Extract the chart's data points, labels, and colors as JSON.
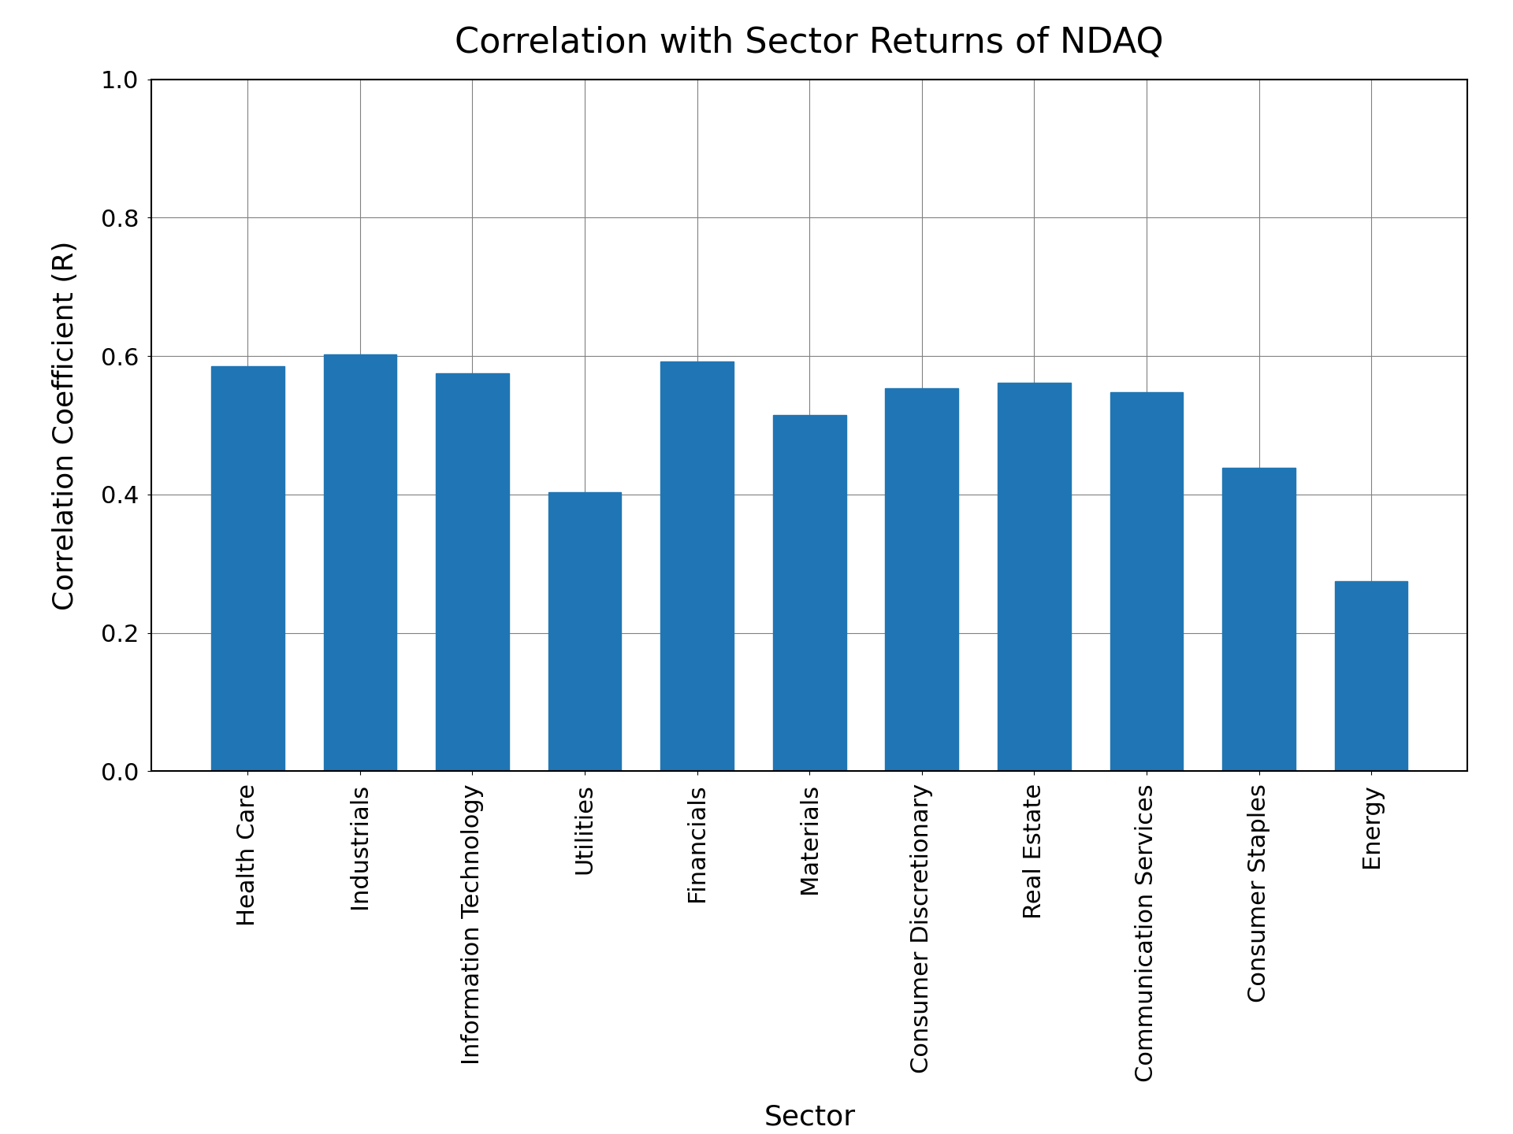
{
  "title": "Correlation with Sector Returns of NDAQ",
  "xlabel": "Sector",
  "ylabel": "Correlation Coefficient (R)",
  "categories": [
    "Health Care",
    "Industrials",
    "Information Technology",
    "Utilities",
    "Financials",
    "Materials",
    "Consumer Discretionary",
    "Real Estate",
    "Communication Services",
    "Consumer Staples",
    "Energy"
  ],
  "values": [
    0.585,
    0.603,
    0.575,
    0.403,
    0.592,
    0.515,
    0.553,
    0.562,
    0.548,
    0.438,
    0.275
  ],
  "bar_color": "#2076b4",
  "ylim": [
    0.0,
    1.0
  ],
  "yticks": [
    0.0,
    0.2,
    0.4,
    0.6,
    0.8,
    1.0
  ],
  "title_fontsize": 32,
  "label_fontsize": 26,
  "tick_fontsize": 22,
  "background_color": "#ffffff"
}
